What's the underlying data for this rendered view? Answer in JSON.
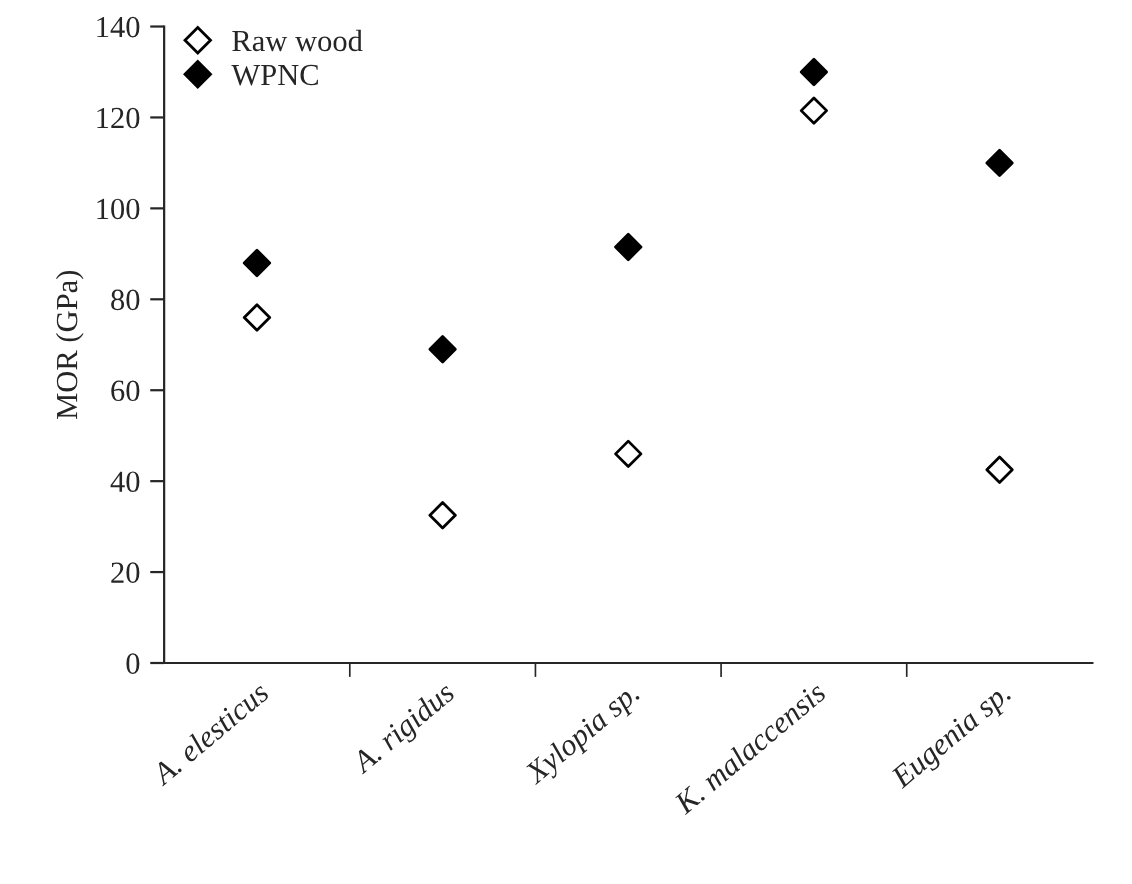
{
  "chart_data": {
    "type": "scatter",
    "ylabel": "MOR (GPa)",
    "categories": [
      "A. elesticus",
      "A. rigidus",
      "Xylopia sp.",
      "K. malaccensis",
      "Eugenia sp."
    ],
    "series": [
      {
        "name": "Raw wood",
        "color": "#ffffff",
        "values": [
          76,
          32.5,
          46,
          121.5,
          42.5
        ]
      },
      {
        "name": "WPNC",
        "color": "#000000",
        "values": [
          88,
          69,
          91.5,
          130,
          110
        ]
      }
    ],
    "ylim": [
      0,
      140
    ],
    "yticks": [
      0,
      20,
      40,
      60,
      80,
      100,
      120,
      140
    ],
    "grid": false,
    "legend": "top left",
    "marker": "diamond"
  }
}
